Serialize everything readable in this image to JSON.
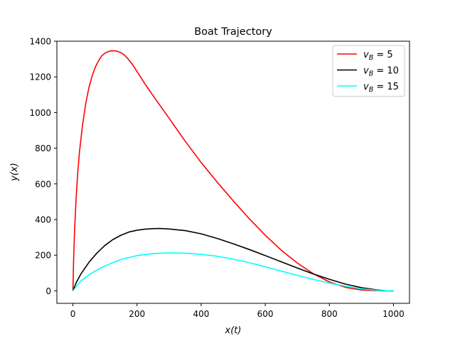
{
  "chart_data": {
    "type": "line",
    "title": "Boat Trajectory",
    "xlabel": "x(t)",
    "ylabel": "y(x)",
    "xlim": [
      -50,
      1050
    ],
    "ylim": [
      -70,
      1400
    ],
    "xticks": [
      "0",
      "200",
      "400",
      "600",
      "800",
      "1000"
    ],
    "yticks": [
      "0",
      "200",
      "400",
      "600",
      "800",
      "1000",
      "1200",
      "1400"
    ],
    "grid": false,
    "legend_position": "top-right",
    "series": [
      {
        "name": "vB = 5",
        "legend_sub": "B",
        "legend_value": "5",
        "color": "#ff0000",
        "x": [
          0,
          2,
          5,
          10,
          15,
          20,
          30,
          40,
          50,
          60,
          70,
          80,
          90,
          100,
          110,
          120,
          130,
          140,
          150,
          160,
          170,
          180,
          190,
          200,
          225,
          250,
          300,
          350,
          400,
          450,
          500,
          550,
          600,
          650,
          700,
          750,
          800,
          850,
          900,
          950,
          975,
          1000
        ],
        "y": [
          0,
          160,
          330,
          520,
          660,
          770,
          930,
          1050,
          1140,
          1205,
          1255,
          1290,
          1318,
          1333,
          1342,
          1346,
          1346,
          1343,
          1335,
          1323,
          1305,
          1283,
          1258,
          1230,
          1160,
          1095,
          968,
          840,
          720,
          610,
          505,
          405,
          312,
          228,
          156,
          96,
          50,
          20,
          5,
          1,
          0,
          0
        ]
      },
      {
        "name": "vB = 10",
        "legend_sub": "B",
        "legend_value": "10",
        "color": "#000000",
        "x": [
          0,
          10,
          25,
          50,
          75,
          100,
          125,
          150,
          175,
          200,
          225,
          250,
          270,
          300,
          350,
          400,
          450,
          500,
          550,
          600,
          650,
          700,
          750,
          800,
          850,
          900,
          950,
          975,
          1000
        ],
        "y": [
          0,
          45,
          95,
          160,
          212,
          255,
          288,
          312,
          330,
          340,
          346,
          349,
          350,
          347,
          338,
          320,
          294,
          264,
          232,
          198,
          163,
          128,
          95,
          65,
          38,
          18,
          5,
          1,
          0
        ]
      },
      {
        "name": "vB = 15",
        "legend_sub": "B",
        "legend_value": "15",
        "color": "#00ffff",
        "x": [
          0,
          10,
          25,
          50,
          75,
          100,
          150,
          200,
          250,
          300,
          350,
          400,
          450,
          500,
          550,
          600,
          650,
          700,
          750,
          800,
          850,
          900,
          950,
          975,
          1000
        ],
        "y": [
          0,
          22,
          55,
          90,
          117,
          140,
          176,
          198,
          209,
          213,
          211,
          205,
          194,
          178,
          158,
          135,
          111,
          87,
          64,
          44,
          26,
          12,
          3,
          1,
          0
        ]
      }
    ]
  }
}
